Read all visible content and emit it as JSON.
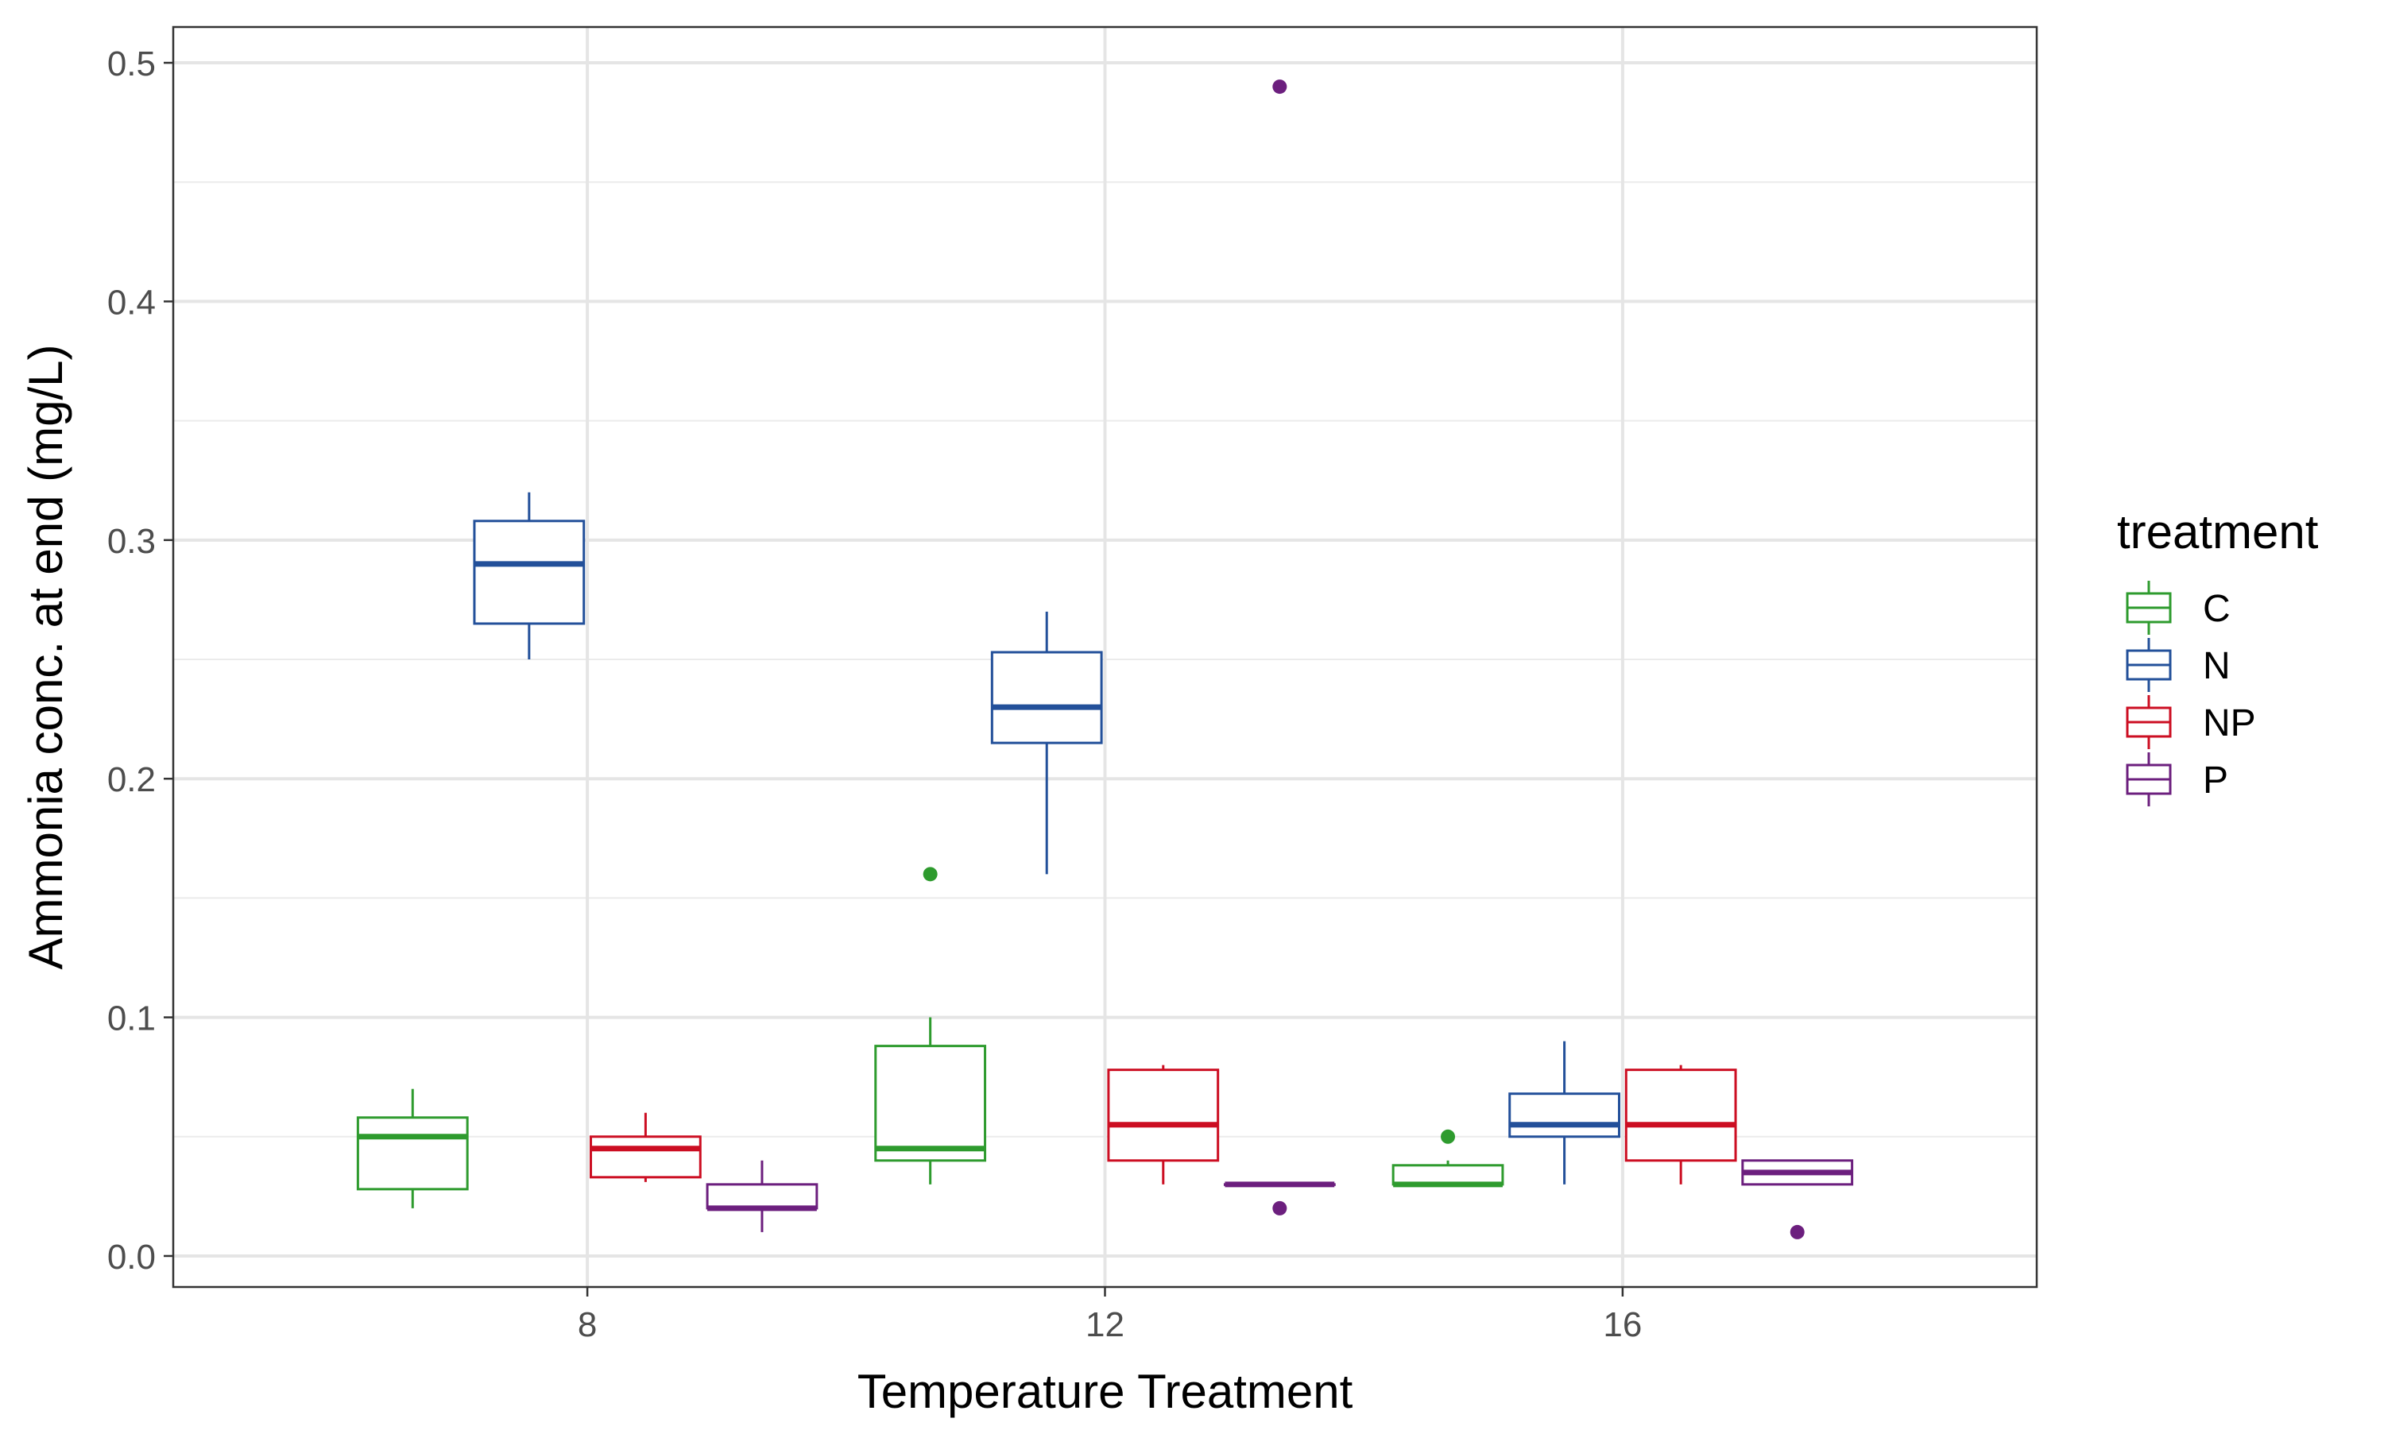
{
  "chart_data": {
    "type": "boxplot",
    "xlabel": "Temperature Treatment",
    "ylabel": "Ammonia conc. at end (mg/L)",
    "categories": [
      "8",
      "12",
      "16"
    ],
    "ylim": [
      -0.013,
      0.515
    ],
    "yticks": [
      "0.0",
      "0.1",
      "0.2",
      "0.3",
      "0.4",
      "0.5"
    ],
    "grid": true,
    "legend": {
      "title": "treatment",
      "position": "right"
    },
    "series": [
      {
        "name": "C",
        "color": "#2E9B2E",
        "boxes": [
          {
            "category": "8",
            "lower_whisker": 0.02,
            "q1": 0.028,
            "median": 0.05,
            "q3": 0.058,
            "upper_whisker": 0.07,
            "outliers": []
          },
          {
            "category": "12",
            "lower_whisker": 0.03,
            "q1": 0.04,
            "median": 0.045,
            "q3": 0.088,
            "upper_whisker": 0.1,
            "outliers": [
              0.16
            ]
          },
          {
            "category": "16",
            "lower_whisker": 0.03,
            "q1": 0.03,
            "median": 0.03,
            "q3": 0.038,
            "upper_whisker": 0.04,
            "outliers": [
              0.05
            ]
          }
        ]
      },
      {
        "name": "N",
        "color": "#23509A",
        "boxes": [
          {
            "category": "8",
            "lower_whisker": 0.25,
            "q1": 0.265,
            "median": 0.29,
            "q3": 0.308,
            "upper_whisker": 0.32,
            "outliers": []
          },
          {
            "category": "12",
            "lower_whisker": 0.16,
            "q1": 0.215,
            "median": 0.23,
            "q3": 0.253,
            "upper_whisker": 0.27,
            "outliers": []
          },
          {
            "category": "16",
            "lower_whisker": 0.03,
            "q1": 0.05,
            "median": 0.055,
            "q3": 0.068,
            "upper_whisker": 0.09,
            "outliers": []
          }
        ]
      },
      {
        "name": "NP",
        "color": "#CC0E22",
        "boxes": [
          {
            "category": "8",
            "lower_whisker": 0.031,
            "q1": 0.033,
            "median": 0.045,
            "q3": 0.05,
            "upper_whisker": 0.06,
            "outliers": []
          },
          {
            "category": "12",
            "lower_whisker": 0.03,
            "q1": 0.04,
            "median": 0.055,
            "q3": 0.078,
            "upper_whisker": 0.08,
            "outliers": []
          },
          {
            "category": "16",
            "lower_whisker": 0.03,
            "q1": 0.04,
            "median": 0.055,
            "q3": 0.078,
            "upper_whisker": 0.08,
            "outliers": []
          }
        ]
      },
      {
        "name": "P",
        "color": "#6C1F7E",
        "boxes": [
          {
            "category": "8",
            "lower_whisker": 0.01,
            "q1": 0.02,
            "median": 0.02,
            "q3": 0.03,
            "upper_whisker": 0.04,
            "outliers": []
          },
          {
            "category": "12",
            "lower_whisker": 0.03,
            "q1": 0.03,
            "median": 0.03,
            "q3": 0.03,
            "upper_whisker": 0.03,
            "outliers": [
              0.02,
              0.49
            ]
          },
          {
            "category": "16",
            "lower_whisker": 0.03,
            "q1": 0.03,
            "median": 0.035,
            "q3": 0.04,
            "upper_whisker": 0.04,
            "outliers": [
              0.01
            ]
          }
        ]
      }
    ]
  }
}
